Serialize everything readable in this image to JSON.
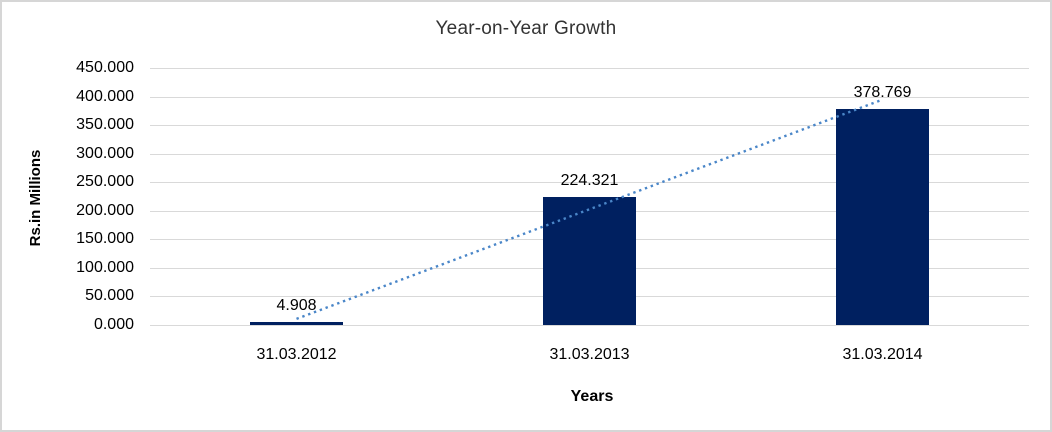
{
  "chart_data": {
    "type": "bar",
    "title": "Year-on-Year Growth",
    "xlabel": "Years",
    "ylabel": "Rs.in Millions",
    "categories": [
      "31.03.2012",
      "31.03.2013",
      "31.03.2014"
    ],
    "values": [
      4.908,
      224.321,
      378.769
    ],
    "data_labels": [
      "4.908",
      "224.321",
      "378.769"
    ],
    "y_tick_labels": [
      "450.000",
      "400.000",
      "350.000",
      "300.000",
      "250.000",
      "200.000",
      "150.000",
      "100.000",
      "50.000",
      "0.000"
    ],
    "ylim": [
      0,
      450
    ],
    "y_tick_step": 50,
    "grid": true,
    "legend_position": "none",
    "bar_color": "#002060",
    "gridline_color": "#d9d9d9",
    "trendline": {
      "type": "linear",
      "style": "dotted",
      "color": "#4a86c8",
      "fitted_start_value": 10.7,
      "fitted_end_value": 394.6
    }
  }
}
